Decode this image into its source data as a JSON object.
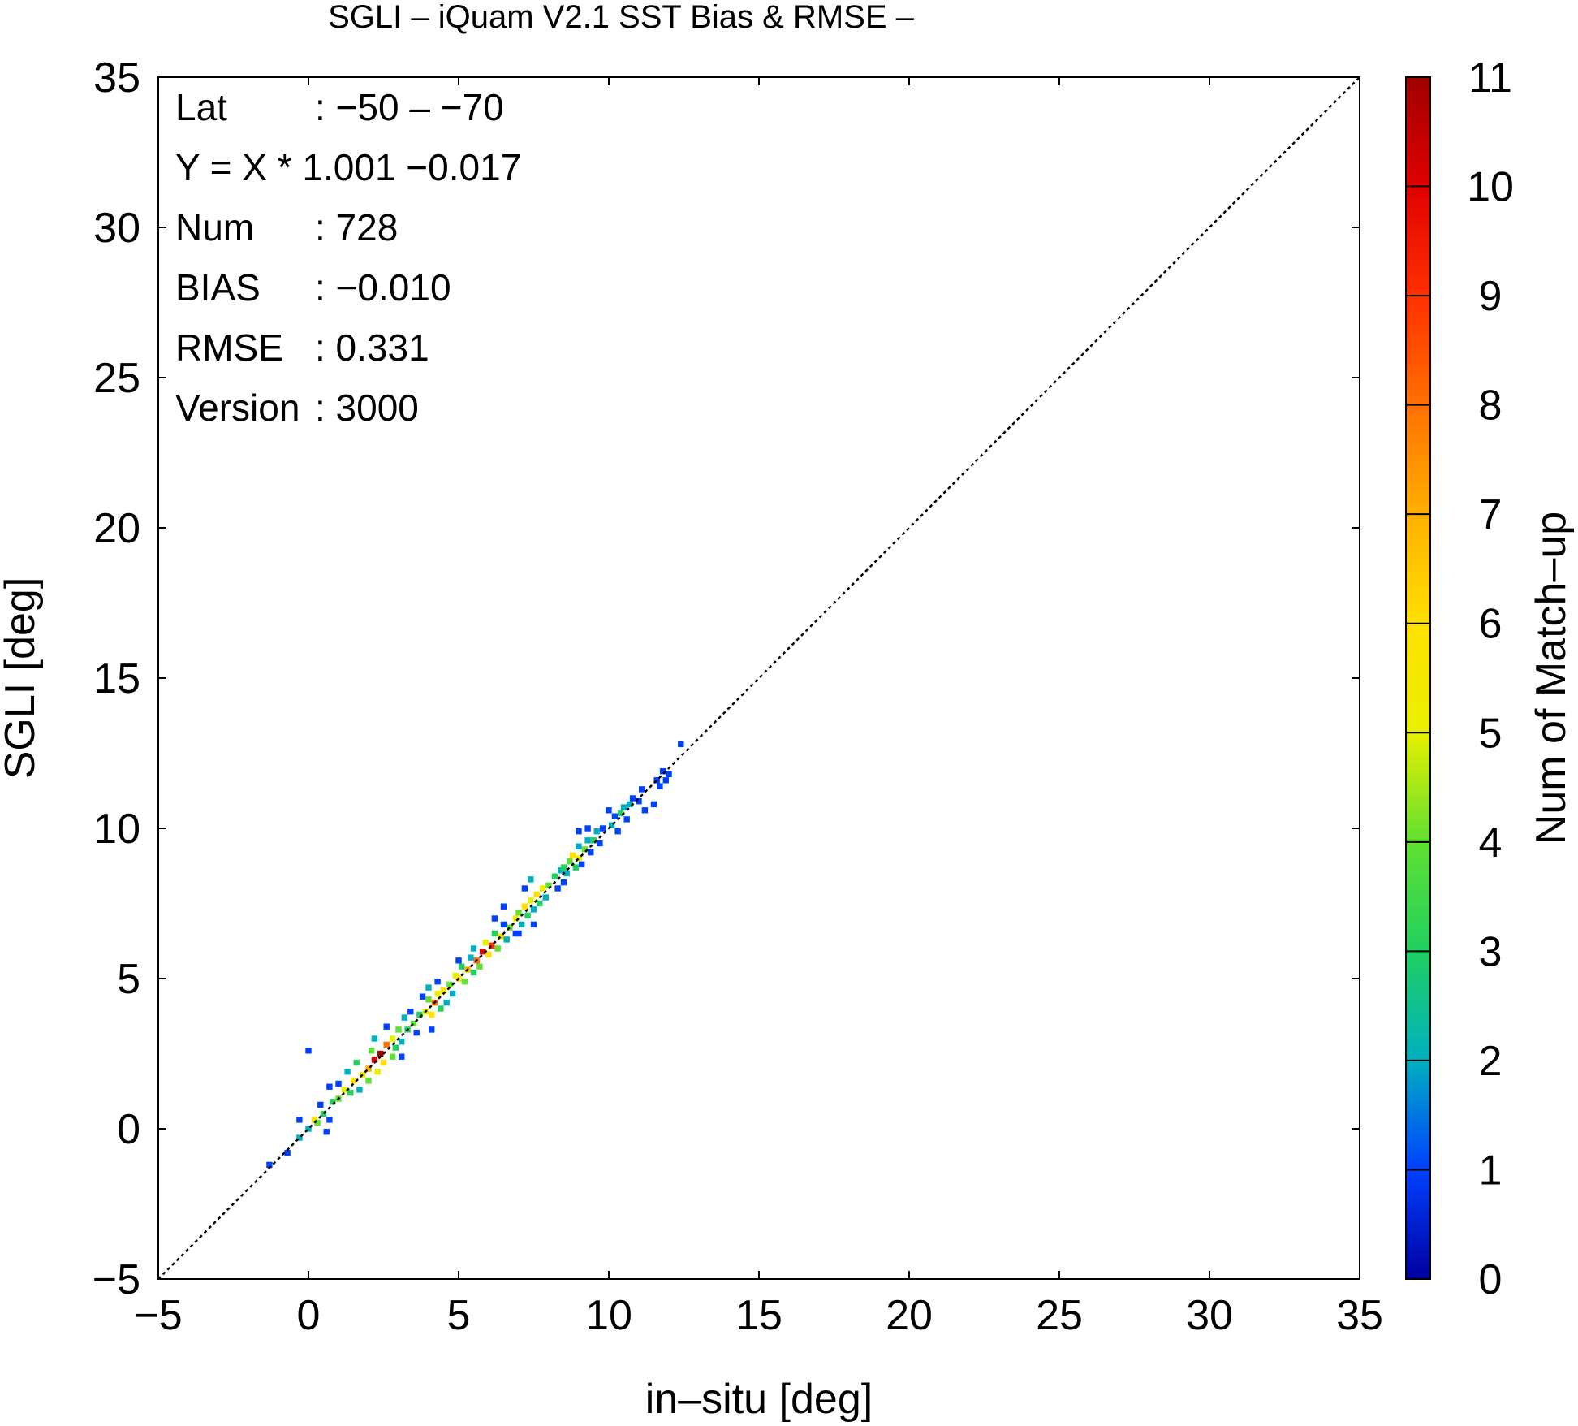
{
  "chart_data": {
    "type": "heatmap",
    "title": "SGLI – iQuam V2.1 SST Bias & RMSE  –",
    "xlabel": "in–situ [deg]",
    "ylabel": "SGLI [deg]",
    "xlim": [
      -5,
      35
    ],
    "ylim": [
      -5,
      35
    ],
    "x_ticks": [
      "−5",
      "0",
      "5",
      "10",
      "15",
      "20",
      "25",
      "30",
      "35"
    ],
    "y_ticks": [
      "−5",
      "0",
      "5",
      "10",
      "15",
      "20",
      "25",
      "30",
      "35"
    ],
    "x_tick_values": [
      -5,
      0,
      5,
      10,
      15,
      20,
      25,
      30,
      35
    ],
    "y_tick_values": [
      -5,
      0,
      5,
      10,
      15,
      20,
      25,
      30,
      35
    ],
    "reference_line": "y = x (dotted)",
    "grid": false,
    "colorbar": {
      "label": "Num of Match–up",
      "min": 0,
      "max": 11,
      "ticks": [
        "0",
        "1",
        "2",
        "3",
        "4",
        "5",
        "6",
        "7",
        "8",
        "9",
        "10",
        "11"
      ],
      "colors": [
        "#0000a0",
        "#0040ff",
        "#00b0c0",
        "#20d060",
        "#60e030",
        "#e8f000",
        "#ffe000",
        "#ffb000",
        "#ff7000",
        "#ff3000",
        "#e00000",
        "#a00000"
      ]
    },
    "stats": [
      {
        "label": "Lat",
        "value": ": −50 – −70"
      },
      {
        "label": "Y = X * 1.001 −0.017",
        "value": ""
      },
      {
        "label": "Num",
        "value": ": 728"
      },
      {
        "label": "BIAS",
        "value": ": −0.010"
      },
      {
        "label": "RMSE",
        "value": ": 0.331"
      },
      {
        "label": "Version",
        "value": ": 3000"
      }
    ],
    "points": [
      [
        -1.3,
        -1.2,
        1
      ],
      [
        -0.7,
        -0.8,
        1
      ],
      [
        -0.3,
        -0.3,
        2
      ],
      [
        0.0,
        2.6,
        1
      ],
      [
        -0.3,
        0.3,
        1
      ],
      [
        0.0,
        0.0,
        2
      ],
      [
        0.2,
        0.3,
        6
      ],
      [
        0.3,
        0.2,
        4
      ],
      [
        0.5,
        0.5,
        3
      ],
      [
        0.6,
        -0.1,
        1
      ],
      [
        0.4,
        0.8,
        1
      ],
      [
        0.7,
        0.3,
        1
      ],
      [
        0.8,
        0.9,
        3
      ],
      [
        1.0,
        1.0,
        4
      ],
      [
        1.2,
        1.3,
        5
      ],
      [
        1.0,
        1.5,
        1
      ],
      [
        0.7,
        1.4,
        1
      ],
      [
        1.4,
        1.2,
        3
      ],
      [
        1.5,
        1.6,
        6
      ],
      [
        1.3,
        1.9,
        2
      ],
      [
        1.7,
        1.3,
        2
      ],
      [
        1.8,
        1.8,
        5
      ],
      [
        1.6,
        2.2,
        3
      ],
      [
        2.0,
        2.0,
        7
      ],
      [
        2.0,
        1.6,
        4
      ],
      [
        2.2,
        2.3,
        10
      ],
      [
        2.1,
        2.6,
        4
      ],
      [
        2.3,
        1.9,
        5
      ],
      [
        2.4,
        2.5,
        11
      ],
      [
        2.5,
        2.2,
        6
      ],
      [
        2.6,
        2.8,
        8
      ],
      [
        2.2,
        3.0,
        2
      ],
      [
        2.8,
        2.4,
        4
      ],
      [
        2.8,
        3.0,
        5
      ],
      [
        2.9,
        2.7,
        3
      ],
      [
        3.0,
        3.3,
        4
      ],
      [
        2.6,
        3.4,
        1
      ],
      [
        3.1,
        2.9,
        2
      ],
      [
        3.3,
        3.3,
        3
      ],
      [
        3.2,
        3.7,
        2
      ],
      [
        3.5,
        3.5,
        4
      ],
      [
        3.4,
        3.9,
        1
      ],
      [
        3.6,
        3.2,
        1
      ],
      [
        3.7,
        3.8,
        3
      ],
      [
        3.1,
        2.4,
        1
      ],
      [
        3.9,
        3.9,
        5
      ],
      [
        4.0,
        4.3,
        4
      ],
      [
        4.1,
        3.8,
        6
      ],
      [
        4.2,
        4.2,
        8
      ],
      [
        4.0,
        4.7,
        2
      ],
      [
        4.3,
        4.5,
        5
      ],
      [
        4.4,
        4.0,
        3
      ],
      [
        4.5,
        4.6,
        6
      ],
      [
        4.3,
        4.9,
        1
      ],
      [
        4.6,
        4.2,
        2
      ],
      [
        4.7,
        4.8,
        4
      ],
      [
        4.1,
        3.3,
        1
      ],
      [
        3.8,
        4.4,
        1
      ],
      [
        4.9,
        5.1,
        5
      ],
      [
        4.8,
        4.5,
        2
      ],
      [
        5.0,
        5.0,
        6
      ],
      [
        5.1,
        5.4,
        3
      ],
      [
        5.2,
        4.9,
        4
      ],
      [
        5.3,
        5.3,
        7
      ],
      [
        5.4,
        5.7,
        2
      ],
      [
        5.5,
        5.2,
        3
      ],
      [
        5.6,
        5.6,
        8
      ],
      [
        5.5,
        6.0,
        2
      ],
      [
        5.7,
        5.4,
        4
      ],
      [
        5.8,
        5.9,
        10
      ],
      [
        5.9,
        6.2,
        5
      ],
      [
        6.0,
        5.8,
        6
      ],
      [
        6.1,
        6.1,
        9
      ],
      [
        6.2,
        6.5,
        3
      ],
      [
        6.3,
        6.0,
        4
      ],
      [
        6.4,
        6.4,
        6
      ],
      [
        6.5,
        6.8,
        1
      ],
      [
        6.6,
        6.3,
        2
      ],
      [
        6.7,
        6.7,
        4
      ],
      [
        6.2,
        7.0,
        1
      ],
      [
        6.9,
        6.5,
        1
      ],
      [
        5.0,
        5.6,
        1
      ],
      [
        6.5,
        7.4,
        1
      ],
      [
        6.9,
        7.0,
        5
      ],
      [
        7.0,
        7.2,
        4
      ],
      [
        7.1,
        6.8,
        2
      ],
      [
        7.2,
        7.4,
        6
      ],
      [
        7.3,
        7.1,
        3
      ],
      [
        7.4,
        7.6,
        5
      ],
      [
        7.5,
        7.3,
        2
      ],
      [
        7.6,
        7.8,
        6
      ],
      [
        7.2,
        8.0,
        1
      ],
      [
        7.7,
        7.5,
        3
      ],
      [
        7.8,
        8.0,
        5
      ],
      [
        7.9,
        7.7,
        2
      ],
      [
        8.0,
        8.1,
        4
      ],
      [
        7.4,
        8.3,
        2
      ],
      [
        7.5,
        6.8,
        1
      ],
      [
        7.0,
        6.5,
        1
      ],
      [
        8.2,
        8.4,
        3
      ],
      [
        8.3,
        8.0,
        1
      ],
      [
        8.4,
        8.6,
        2
      ],
      [
        8.5,
        8.7,
        3
      ],
      [
        8.6,
        8.5,
        2
      ],
      [
        8.7,
        8.9,
        4
      ],
      [
        8.8,
        9.1,
        6
      ],
      [
        8.9,
        8.7,
        3
      ],
      [
        9.0,
        9.0,
        5
      ],
      [
        9.0,
        9.4,
        2
      ],
      [
        9.2,
        9.3,
        4
      ],
      [
        9.1,
        8.8,
        1
      ],
      [
        9.3,
        9.6,
        2
      ],
      [
        9.4,
        9.2,
        1
      ],
      [
        9.5,
        9.6,
        3
      ],
      [
        9.6,
        9.9,
        2
      ],
      [
        9.7,
        9.5,
        1
      ],
      [
        9.8,
        10.0,
        1
      ],
      [
        9.3,
        10.0,
        1
      ],
      [
        8.5,
        8.2,
        1
      ],
      [
        9.0,
        9.9,
        1
      ],
      [
        10.1,
        10.1,
        2
      ],
      [
        10.2,
        10.4,
        1
      ],
      [
        10.3,
        9.9,
        1
      ],
      [
        10.4,
        10.5,
        3
      ],
      [
        10.5,
        10.7,
        2
      ],
      [
        10.6,
        10.3,
        1
      ],
      [
        10.7,
        10.8,
        2
      ],
      [
        10.8,
        11.0,
        1
      ],
      [
        11.0,
        10.9,
        1
      ],
      [
        11.1,
        11.3,
        1
      ],
      [
        11.2,
        10.6,
        1
      ],
      [
        11.5,
        10.8,
        1
      ],
      [
        11.6,
        11.6,
        1
      ],
      [
        11.8,
        11.9,
        1
      ],
      [
        11.9,
        11.6,
        1
      ],
      [
        12.0,
        11.8,
        1
      ],
      [
        11.7,
        11.4,
        1
      ],
      [
        12.4,
        12.8,
        1
      ],
      [
        10.0,
        10.6,
        1
      ]
    ]
  }
}
